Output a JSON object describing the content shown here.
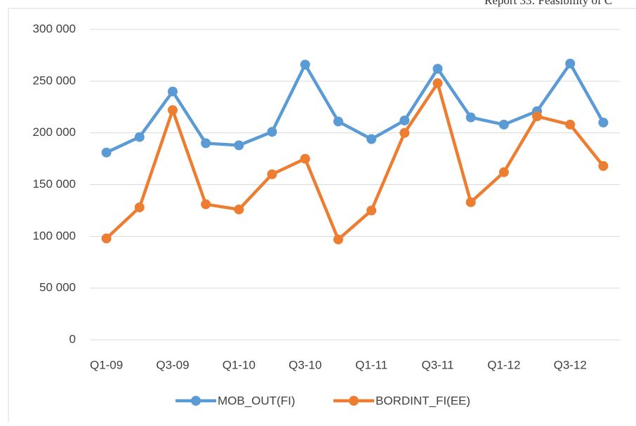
{
  "header": {
    "title": "Report 33: Feasibility of C"
  },
  "chart_data": {
    "type": "line",
    "categories": [
      "Q1-09",
      null,
      "Q3-09",
      null,
      "Q1-10",
      null,
      "Q3-10",
      null,
      "Q1-11",
      null,
      "Q3-11",
      null,
      "Q1-12",
      null,
      "Q3-12",
      null
    ],
    "series": [
      {
        "name": "MOB_OUT(FI)",
        "color": "#5b9bd5",
        "values": [
          181000,
          196000,
          240000,
          190000,
          188000,
          201000,
          266000,
          211000,
          194000,
          212000,
          262000,
          215000,
          208000,
          221000,
          267000,
          210000
        ]
      },
      {
        "name": "BORDINT_FI(EE)",
        "color": "#ed7d31",
        "values": [
          98000,
          128000,
          222000,
          131000,
          126000,
          160000,
          175000,
          97000,
          125000,
          200000,
          248000,
          133000,
          162000,
          216000,
          208000,
          168000
        ]
      }
    ],
    "ylim": [
      0,
      300000
    ],
    "yticks": [
      0,
      {
        "value": 50000,
        "label": "50 000"
      },
      {
        "value": 100000,
        "label": "100 000"
      },
      {
        "value": 150000,
        "label": "150 000"
      },
      {
        "value": 200000,
        "label": "200 000"
      },
      {
        "value": 250000,
        "label": "250 000"
      },
      {
        "value": 300000,
        "label": "300 000"
      }
    ],
    "grid": true,
    "legend": "bottom"
  }
}
